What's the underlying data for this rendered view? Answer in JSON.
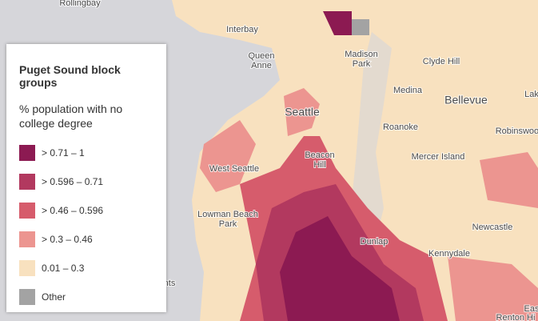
{
  "legend": {
    "title": "Puget Sound block groups",
    "field": "% population with no college degree",
    "items": [
      {
        "label": "> 0.71 – 1",
        "color": "#8c1a52"
      },
      {
        "label": "> 0.596 – 0.71",
        "color": "#b2395f"
      },
      {
        "label": "> 0.46 – 0.596",
        "color": "#d65c6c"
      },
      {
        "label": "> 0.3 – 0.46",
        "color": "#ec9590"
      },
      {
        "label": "0.01 – 0.3",
        "color": "#f8e1bf"
      },
      {
        "label": "Other",
        "color": "#a3a3a3"
      }
    ]
  },
  "places": [
    [
      "Rollingbay"
    ],
    [
      "Interbay"
    ],
    [
      "Queen",
      "Anne"
    ],
    [
      "Madison",
      "Park"
    ],
    [
      "Clyde Hill"
    ],
    [
      "Medina"
    ],
    [
      "Bellevue"
    ],
    [
      "Seattle"
    ],
    [
      "Roanoke"
    ],
    [
      "Robinswood"
    ],
    [
      "Beacon",
      "Hill"
    ],
    [
      "Mercer Island"
    ],
    [
      "West Seattle"
    ],
    [
      "Lowman Beach",
      "Park"
    ],
    [
      "Newcastle"
    ],
    [
      "Dunlap"
    ],
    [
      "Kennydale"
    ],
    [
      "Lak"
    ],
    [
      "nts"
    ],
    [
      "Eas"
    ],
    [
      "Renton Hi"
    ]
  ]
}
